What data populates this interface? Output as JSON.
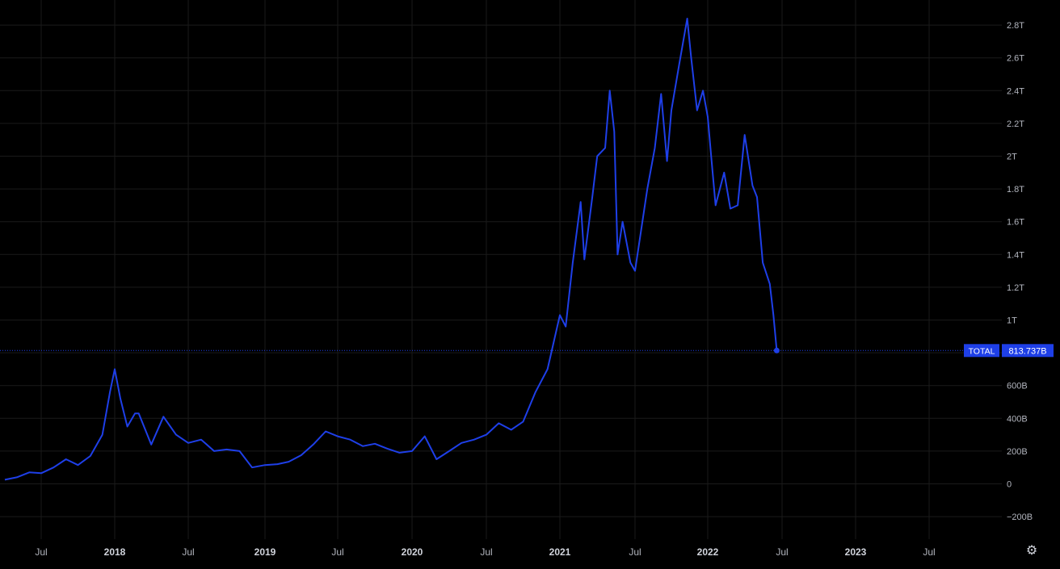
{
  "chart_data": {
    "type": "line",
    "title": "",
    "xlabel": "",
    "ylabel": "",
    "ylim": [
      -280000000000,
      2900000000000
    ],
    "xlim": [
      "2017-04-01",
      "2023-12-15"
    ],
    "y_ticks": [
      {
        "value": -200000000000,
        "label": "−200B"
      },
      {
        "value": 0,
        "label": "0"
      },
      {
        "value": 200000000000,
        "label": "200B"
      },
      {
        "value": 400000000000,
        "label": "400B"
      },
      {
        "value": 600000000000,
        "label": "600B"
      },
      {
        "value": 1000000000000,
        "label": "1T"
      },
      {
        "value": 1200000000000,
        "label": "1.2T"
      },
      {
        "value": 1400000000000,
        "label": "1.4T"
      },
      {
        "value": 1600000000000,
        "label": "1.6T"
      },
      {
        "value": 1800000000000,
        "label": "1.8T"
      },
      {
        "value": 2000000000000,
        "label": "2T"
      },
      {
        "value": 2200000000000,
        "label": "2.2T"
      },
      {
        "value": 2400000000000,
        "label": "2.4T"
      },
      {
        "value": 2600000000000,
        "label": "2.6T"
      },
      {
        "value": 2800000000000,
        "label": "2.8T"
      }
    ],
    "x_ticks": [
      {
        "date": "2017-07-01",
        "label": "Jul",
        "bold": false
      },
      {
        "date": "2018-01-01",
        "label": "2018",
        "bold": true
      },
      {
        "date": "2018-07-01",
        "label": "Jul",
        "bold": false
      },
      {
        "date": "2019-01-01",
        "label": "2019",
        "bold": true
      },
      {
        "date": "2019-07-01",
        "label": "Jul",
        "bold": false
      },
      {
        "date": "2020-01-01",
        "label": "2020",
        "bold": true
      },
      {
        "date": "2020-07-01",
        "label": "Jul",
        "bold": false
      },
      {
        "date": "2021-01-01",
        "label": "2021",
        "bold": true
      },
      {
        "date": "2021-07-01",
        "label": "Jul",
        "bold": false
      },
      {
        "date": "2022-01-01",
        "label": "2022",
        "bold": true
      },
      {
        "date": "2022-07-01",
        "label": "Jul",
        "bold": false
      },
      {
        "date": "2023-01-01",
        "label": "2023",
        "bold": true
      },
      {
        "date": "2023-07-01",
        "label": "Jul",
        "bold": false
      }
    ],
    "grid": true,
    "series": [
      {
        "name": "TOTAL",
        "color": "#1e3fe8",
        "points": [
          [
            "2017-04-01",
            25000000000
          ],
          [
            "2017-05-01",
            40000000000
          ],
          [
            "2017-06-01",
            70000000000
          ],
          [
            "2017-07-01",
            65000000000
          ],
          [
            "2017-08-01",
            100000000000
          ],
          [
            "2017-09-01",
            150000000000
          ],
          [
            "2017-10-01",
            115000000000
          ],
          [
            "2017-11-01",
            170000000000
          ],
          [
            "2017-12-01",
            300000000000
          ],
          [
            "2017-12-20",
            560000000000
          ],
          [
            "2018-01-01",
            700000000000
          ],
          [
            "2018-01-15",
            520000000000
          ],
          [
            "2018-02-01",
            350000000000
          ],
          [
            "2018-02-20",
            430000000000
          ],
          [
            "2018-03-01",
            430000000000
          ],
          [
            "2018-04-01",
            240000000000
          ],
          [
            "2018-05-01",
            410000000000
          ],
          [
            "2018-06-01",
            300000000000
          ],
          [
            "2018-07-01",
            250000000000
          ],
          [
            "2018-08-01",
            270000000000
          ],
          [
            "2018-09-01",
            200000000000
          ],
          [
            "2018-10-01",
            210000000000
          ],
          [
            "2018-11-01",
            200000000000
          ],
          [
            "2018-12-01",
            100000000000
          ],
          [
            "2019-01-01",
            115000000000
          ],
          [
            "2019-02-01",
            120000000000
          ],
          [
            "2019-03-01",
            135000000000
          ],
          [
            "2019-04-01",
            175000000000
          ],
          [
            "2019-05-01",
            240000000000
          ],
          [
            "2019-06-01",
            320000000000
          ],
          [
            "2019-07-01",
            290000000000
          ],
          [
            "2019-08-01",
            270000000000
          ],
          [
            "2019-09-01",
            230000000000
          ],
          [
            "2019-10-01",
            245000000000
          ],
          [
            "2019-11-01",
            215000000000
          ],
          [
            "2019-12-01",
            190000000000
          ],
          [
            "2020-01-01",
            200000000000
          ],
          [
            "2020-02-01",
            290000000000
          ],
          [
            "2020-03-01",
            150000000000
          ],
          [
            "2020-04-01",
            200000000000
          ],
          [
            "2020-05-01",
            250000000000
          ],
          [
            "2020-06-01",
            270000000000
          ],
          [
            "2020-07-01",
            300000000000
          ],
          [
            "2020-08-01",
            370000000000
          ],
          [
            "2020-09-01",
            330000000000
          ],
          [
            "2020-10-01",
            380000000000
          ],
          [
            "2020-11-01",
            560000000000
          ],
          [
            "2020-12-01",
            700000000000
          ],
          [
            "2021-01-01",
            1030000000000
          ],
          [
            "2021-01-15",
            960000000000
          ],
          [
            "2021-02-01",
            1350000000000
          ],
          [
            "2021-02-20",
            1720000000000
          ],
          [
            "2021-03-01",
            1370000000000
          ],
          [
            "2021-03-20",
            1750000000000
          ],
          [
            "2021-04-01",
            2000000000000
          ],
          [
            "2021-04-20",
            2050000000000
          ],
          [
            "2021-05-01",
            2400000000000
          ],
          [
            "2021-05-12",
            2150000000000
          ],
          [
            "2021-05-20",
            1400000000000
          ],
          [
            "2021-06-01",
            1600000000000
          ],
          [
            "2021-06-20",
            1350000000000
          ],
          [
            "2021-07-01",
            1300000000000
          ],
          [
            "2021-08-01",
            1800000000000
          ],
          [
            "2021-08-20",
            2050000000000
          ],
          [
            "2021-09-05",
            2380000000000
          ],
          [
            "2021-09-20",
            1970000000000
          ],
          [
            "2021-10-01",
            2280000000000
          ],
          [
            "2021-10-20",
            2550000000000
          ],
          [
            "2021-11-10",
            2840000000000
          ],
          [
            "2021-11-20",
            2600000000000
          ],
          [
            "2021-12-05",
            2280000000000
          ],
          [
            "2021-12-20",
            2400000000000
          ],
          [
            "2022-01-01",
            2240000000000
          ],
          [
            "2022-01-10",
            1980000000000
          ],
          [
            "2022-01-20",
            1700000000000
          ],
          [
            "2022-02-10",
            1900000000000
          ],
          [
            "2022-02-25",
            1680000000000
          ],
          [
            "2022-03-15",
            1700000000000
          ],
          [
            "2022-04-01",
            2130000000000
          ],
          [
            "2022-04-20",
            1820000000000
          ],
          [
            "2022-05-01",
            1750000000000
          ],
          [
            "2022-05-15",
            1350000000000
          ],
          [
            "2022-06-01",
            1220000000000
          ],
          [
            "2022-06-10",
            1030000000000
          ],
          [
            "2022-06-18",
            813737000000
          ]
        ]
      }
    ],
    "last_value_label": {
      "series": "TOTAL",
      "value_text": "813.737B"
    }
  }
}
